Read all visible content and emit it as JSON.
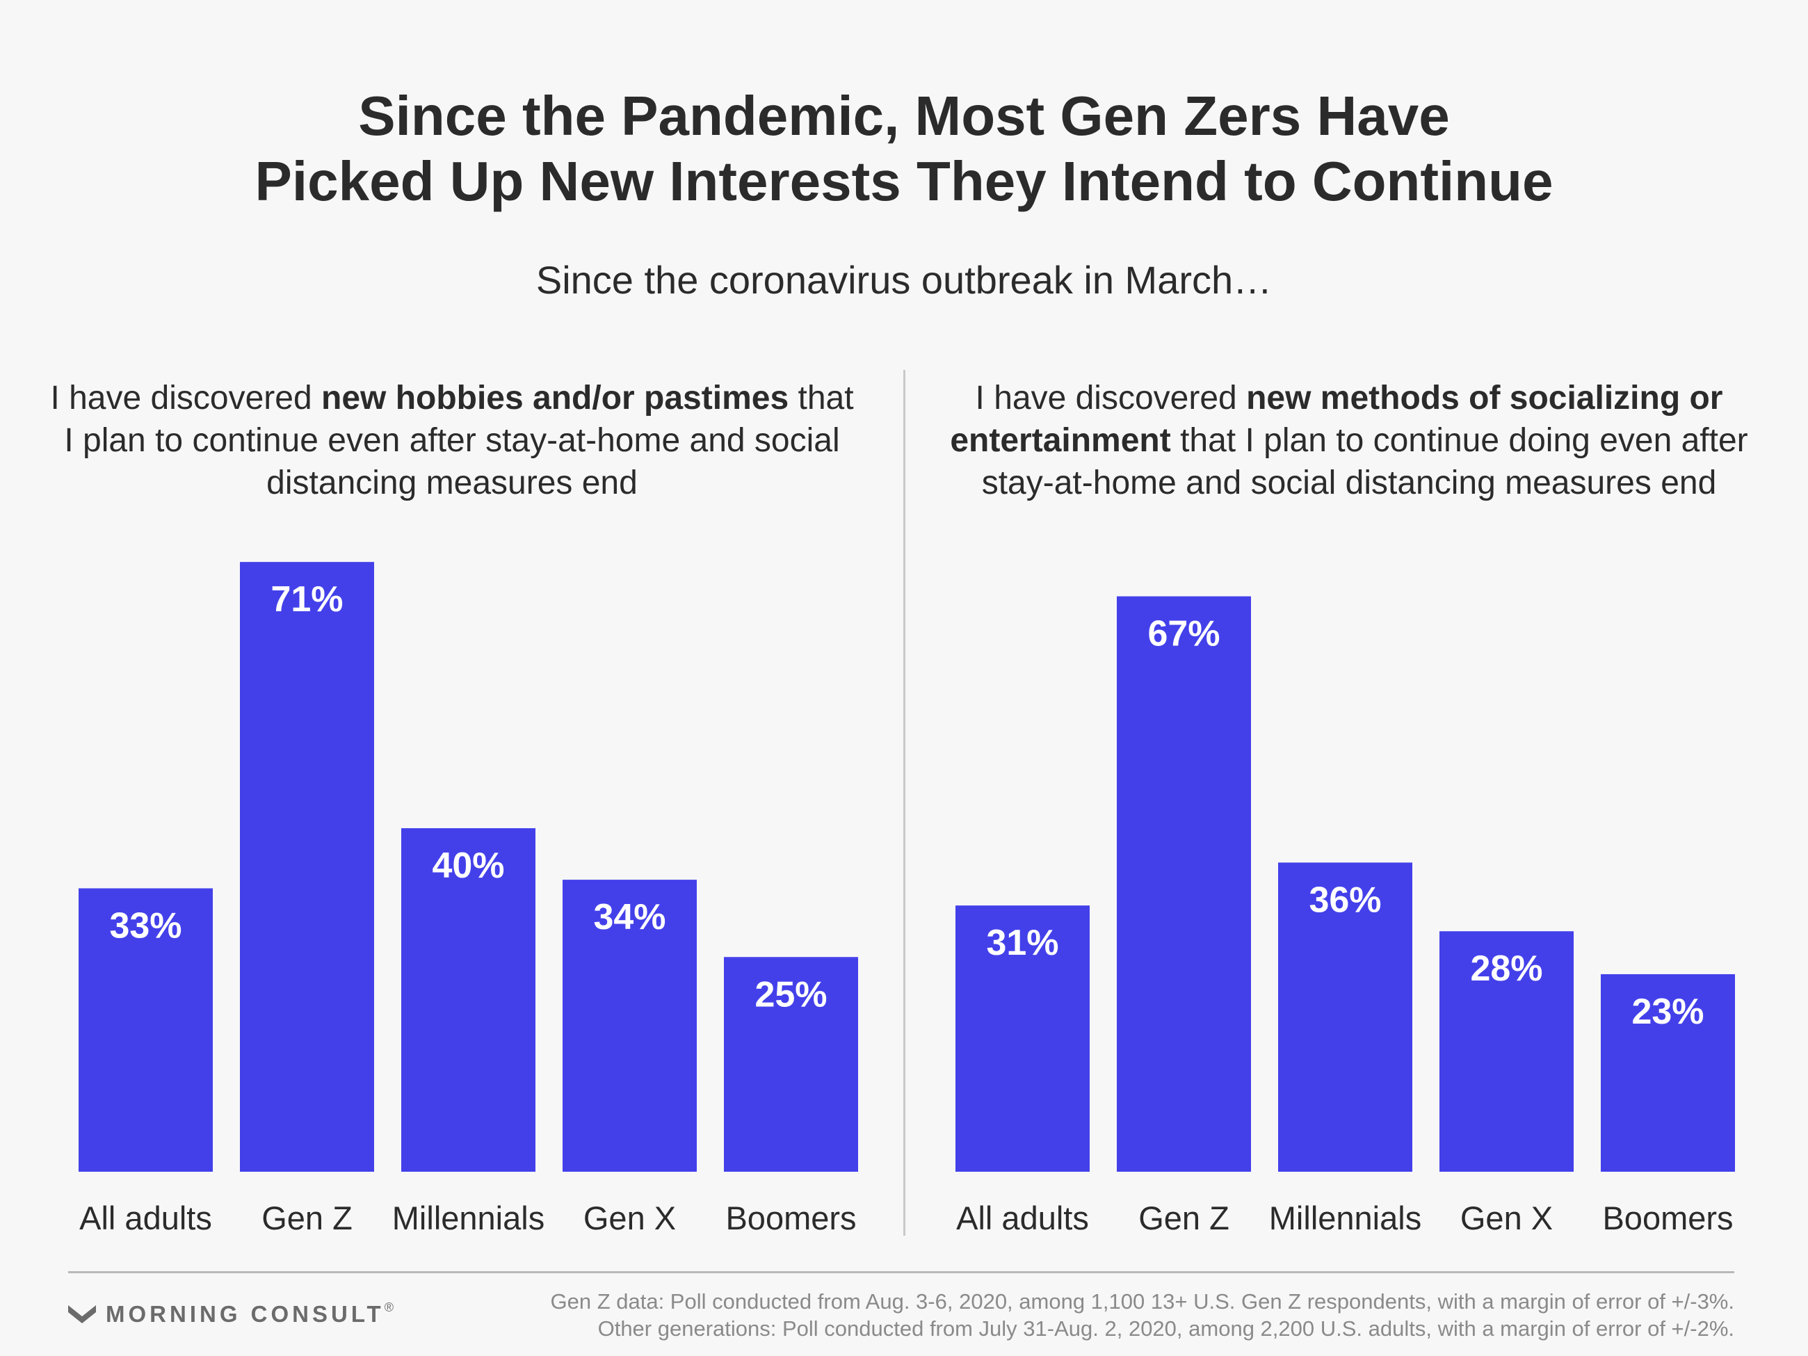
{
  "title": {
    "line1": "Since the Pandemic, Most Gen Zers Have",
    "line2": "Picked Up New Interests They Intend to Continue"
  },
  "subtitle": "Since the coronavirus outbreak in March…",
  "panels": [
    {
      "question_pre": "I have discovered ",
      "question_bold": "new hobbies and/or pastimes",
      "question_post": " that I plan to continue even after stay-at-home and social distancing measures end"
    },
    {
      "question_pre": "I have discovered ",
      "question_bold": "new methods of socializing or entertainment",
      "question_post": " that I plan to continue doing even after stay-at-home and social distancing measures end"
    }
  ],
  "chart_data": [
    {
      "type": "bar",
      "title": "I have discovered new hobbies and/or pastimes that I plan to continue even after stay-at-home and social distancing measures end",
      "categories": [
        "All adults",
        "Gen Z",
        "Millennials",
        "Gen X",
        "Boomers"
      ],
      "values": [
        33,
        71,
        40,
        34,
        25
      ],
      "value_labels": [
        "33%",
        "71%",
        "40%",
        "34%",
        "25%"
      ],
      "unit": "%",
      "color": "#4340ea",
      "ylim": [
        0,
        100
      ],
      "grid": false
    },
    {
      "type": "bar",
      "title": "I have discovered new methods of socializing or entertainment that I plan to continue doing even after stay-at-home and social distancing measures end",
      "categories": [
        "All adults",
        "Gen Z",
        "Millennials",
        "Gen X",
        "Boomers"
      ],
      "values": [
        31,
        67,
        36,
        28,
        23
      ],
      "value_labels": [
        "31%",
        "67%",
        "36%",
        "28%",
        "23%"
      ],
      "unit": "%",
      "color": "#4340ea",
      "ylim": [
        0,
        100
      ],
      "grid": false
    }
  ],
  "footer": {
    "logo_text": "MORNING CONSULT",
    "logo_mark": "®",
    "note_line1": "Gen Z data: Poll conducted from Aug. 3-6, 2020, among 1,100 13+ U.S. Gen Z respondents, with a margin of error of +/-3%.",
    "note_line2": "Other generations: Poll conducted from July 31-Aug. 2, 2020, among 2,200 U.S. adults, with a margin of error of +/-2%."
  },
  "colors": {
    "bar": "#4340ea",
    "text": "#2b2b2b",
    "background": "#f7f7f8",
    "logo": "#6b6b6b"
  }
}
